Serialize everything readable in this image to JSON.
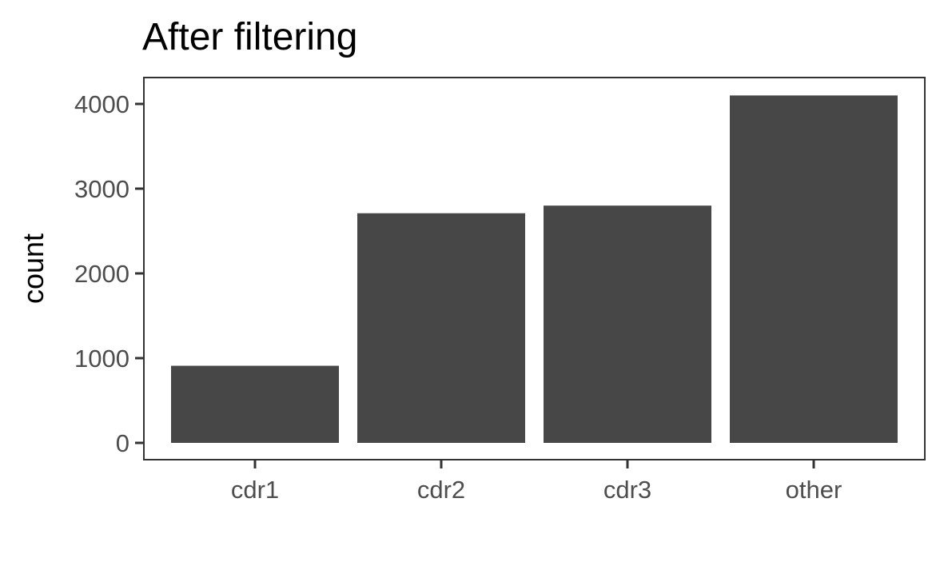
{
  "chart_data": {
    "type": "bar",
    "title": "After filtering",
    "xlabel": "",
    "ylabel": "count",
    "categories": [
      "cdr1",
      "cdr2",
      "cdr3",
      "other"
    ],
    "values": [
      910,
      2710,
      2800,
      4100
    ],
    "ylim": [
      0,
      4400
    ],
    "yticks": [
      0,
      1000,
      2000,
      3000,
      4000
    ],
    "grid": false,
    "legend": "none",
    "bar_color": "#474747",
    "axis_color": "#333333",
    "tick_label_color": "#4d4d4d"
  }
}
